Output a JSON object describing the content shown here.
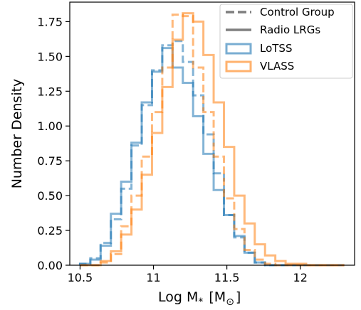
{
  "chart_data": {
    "type": "histogram-step",
    "xlabel_main": "Log M",
    "xlabel_sub": "*",
    "xlabel_bracket_open": "[M",
    "xlabel_bracket_sub": "⊙",
    "xlabel_bracket_close": "]",
    "ylabel": "Number Density",
    "xlim": [
      10.43,
      12.37
    ],
    "ylim": [
      0,
      1.89
    ],
    "x_ticks": [
      {
        "value": 10.5,
        "label": "10.5"
      },
      {
        "value": 11,
        "label": "11"
      },
      {
        "value": 11.5,
        "label": "11.5"
      },
      {
        "value": 12,
        "label": "12"
      }
    ],
    "y_ticks": [
      {
        "value": 0,
        "label": "0.00"
      },
      {
        "value": 0.25,
        "label": "0.25"
      },
      {
        "value": 0.5,
        "label": "0.50"
      },
      {
        "value": 0.75,
        "label": "0.75"
      },
      {
        "value": 1.0,
        "label": "1.00"
      },
      {
        "value": 1.25,
        "label": "1.25"
      },
      {
        "value": 1.5,
        "label": "1.50"
      },
      {
        "value": 1.75,
        "label": "1.75"
      }
    ],
    "bin_edges": [
      10.5,
      10.57,
      10.64,
      10.71,
      10.78,
      10.85,
      10.92,
      10.99,
      11.06,
      11.13,
      11.2,
      11.27,
      11.34,
      11.41,
      11.48,
      11.55,
      11.62,
      11.69,
      11.76,
      11.83,
      11.9,
      11.97,
      12.04,
      12.11,
      12.18,
      12.25,
      12.3
    ],
    "series": [
      {
        "name": "LoTSS",
        "group": "Radio LRGs",
        "color": "#1f77b4",
        "style": "solid",
        "values": [
          0.01,
          0.04,
          0.14,
          0.37,
          0.6,
          0.88,
          1.17,
          1.39,
          1.56,
          1.42,
          1.31,
          1.07,
          0.8,
          0.54,
          0.36,
          0.21,
          0.09,
          0.02,
          0.0,
          0.0,
          0.0,
          0.0,
          0.0,
          0.0,
          0.0,
          0.0
        ]
      },
      {
        "name": "LoTSS",
        "group": "Control Group",
        "color": "#1f77b4",
        "style": "dashed",
        "values": [
          0.01,
          0.05,
          0.16,
          0.33,
          0.55,
          0.86,
          1.15,
          1.4,
          1.58,
          1.61,
          1.46,
          1.22,
          0.94,
          0.66,
          0.36,
          0.2,
          0.09,
          0.02,
          0.0,
          0.0,
          0.0,
          0.0,
          0.0,
          0.0,
          0.0,
          0.0
        ]
      },
      {
        "name": "VLASS",
        "group": "Radio LRGs",
        "color": "#ff7f0e",
        "style": "solid",
        "values": [
          0.0,
          0.0,
          0.03,
          0.1,
          0.22,
          0.4,
          0.65,
          0.95,
          1.28,
          1.62,
          1.81,
          1.75,
          1.51,
          1.17,
          0.85,
          0.5,
          0.3,
          0.15,
          0.07,
          0.03,
          0.01,
          0.01,
          0.0,
          0.0,
          0.0,
          0.0
        ]
      },
      {
        "name": "VLASS",
        "group": "Control Group",
        "color": "#ff7f0e",
        "style": "dashed",
        "values": [
          0.0,
          0.0,
          0.02,
          0.08,
          0.28,
          0.5,
          0.78,
          1.1,
          1.42,
          1.8,
          1.79,
          1.42,
          1.1,
          0.78,
          0.48,
          0.26,
          0.11,
          0.04,
          0.01,
          0.0,
          0.0,
          0.0,
          0.0,
          0.0,
          0.0,
          0.0
        ]
      }
    ],
    "legend": {
      "placement": "top-right",
      "entries": [
        {
          "label": "Control Group",
          "kind": "line",
          "style": "dashed",
          "color": "#7f7f7f"
        },
        {
          "label": "Radio LRGs",
          "kind": "line",
          "style": "solid",
          "color": "#7f7f7f"
        },
        {
          "label": "LoTSS",
          "kind": "box",
          "color": "#1f77b4"
        },
        {
          "label": "VLASS",
          "kind": "box",
          "color": "#ff7f0e"
        }
      ]
    }
  }
}
